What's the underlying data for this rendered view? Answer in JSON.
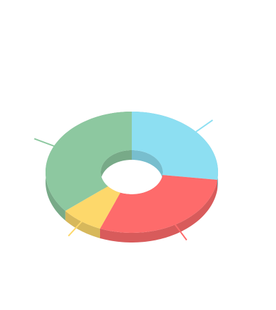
{
  "chart_data": {
    "type": "donut3d",
    "values": [
      27,
      29,
      8,
      36
    ],
    "colors": [
      "#8ddff2",
      "#fe6b6b",
      "#fdd86b",
      "#8dc8a0"
    ]
  }
}
